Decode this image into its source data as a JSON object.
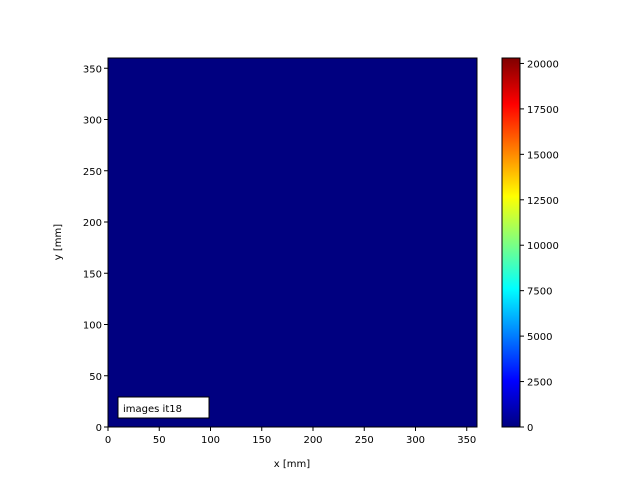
{
  "chart_data": {
    "type": "heatmap",
    "title": "",
    "xlabel": "x [mm]",
    "ylabel": "y [mm]",
    "xlim": [
      0,
      360
    ],
    "ylim": [
      0,
      360
    ],
    "xticks": [
      0,
      50,
      100,
      150,
      200,
      250,
      300,
      350
    ],
    "yticks": [
      0,
      50,
      100,
      150,
      200,
      250,
      300,
      350
    ],
    "colormap": "jet",
    "field_value": 0,
    "colorbar": {
      "range": [
        0,
        20300
      ],
      "ticks": [
        0,
        2500,
        5000,
        7500,
        10000,
        12500,
        15000,
        17500,
        20000
      ]
    },
    "annotation": "images it18",
    "annotation_location": "lower-left",
    "grid": false
  }
}
